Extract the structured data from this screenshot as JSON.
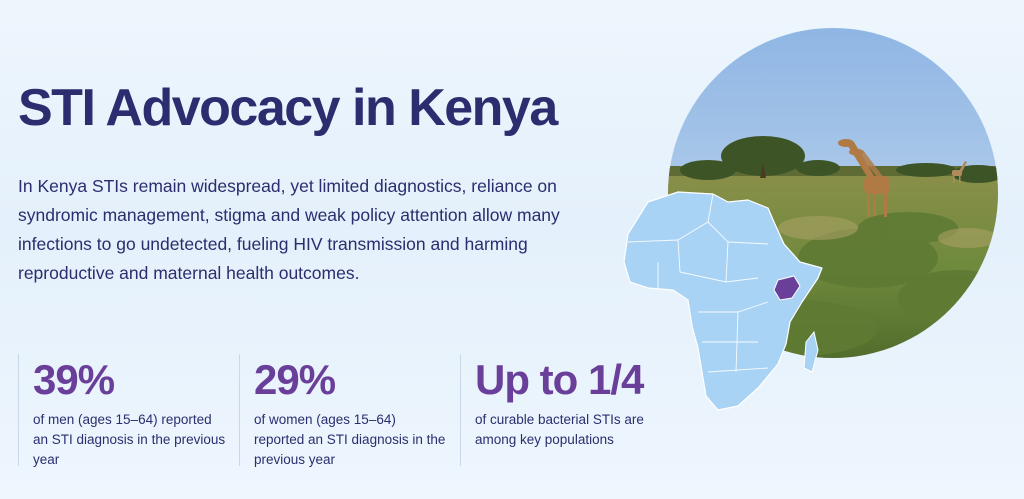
{
  "header": {
    "title": "STI Advocacy in Kenya",
    "intro": "In Kenya STIs remain widespread, yet limited diagnostics, reliance on syndromic management, stigma and weak policy attention allow many infections to go undetected, fueling HIV transmission and harming reproductive and maternal health outcomes."
  },
  "stats": [
    {
      "value": "39%",
      "description": "of men (ages 15–64) reported an STI diagnosis in the previous year"
    },
    {
      "value": "29%",
      "description": "of women (ages 15–64) reported an STI diagnosis in the previous year"
    },
    {
      "value": "Up to 1/4",
      "description": "of curable bacterial STIs are among key populations"
    }
  ],
  "colors": {
    "heading": "#2b2d6e",
    "accent": "#6a3f99",
    "map_fill": "#a9d3f5",
    "kenya_highlight": "#6a3f99"
  },
  "imagery": {
    "photo": "savanna-giraffes-photo",
    "map": "africa-map-kenya-highlighted"
  }
}
